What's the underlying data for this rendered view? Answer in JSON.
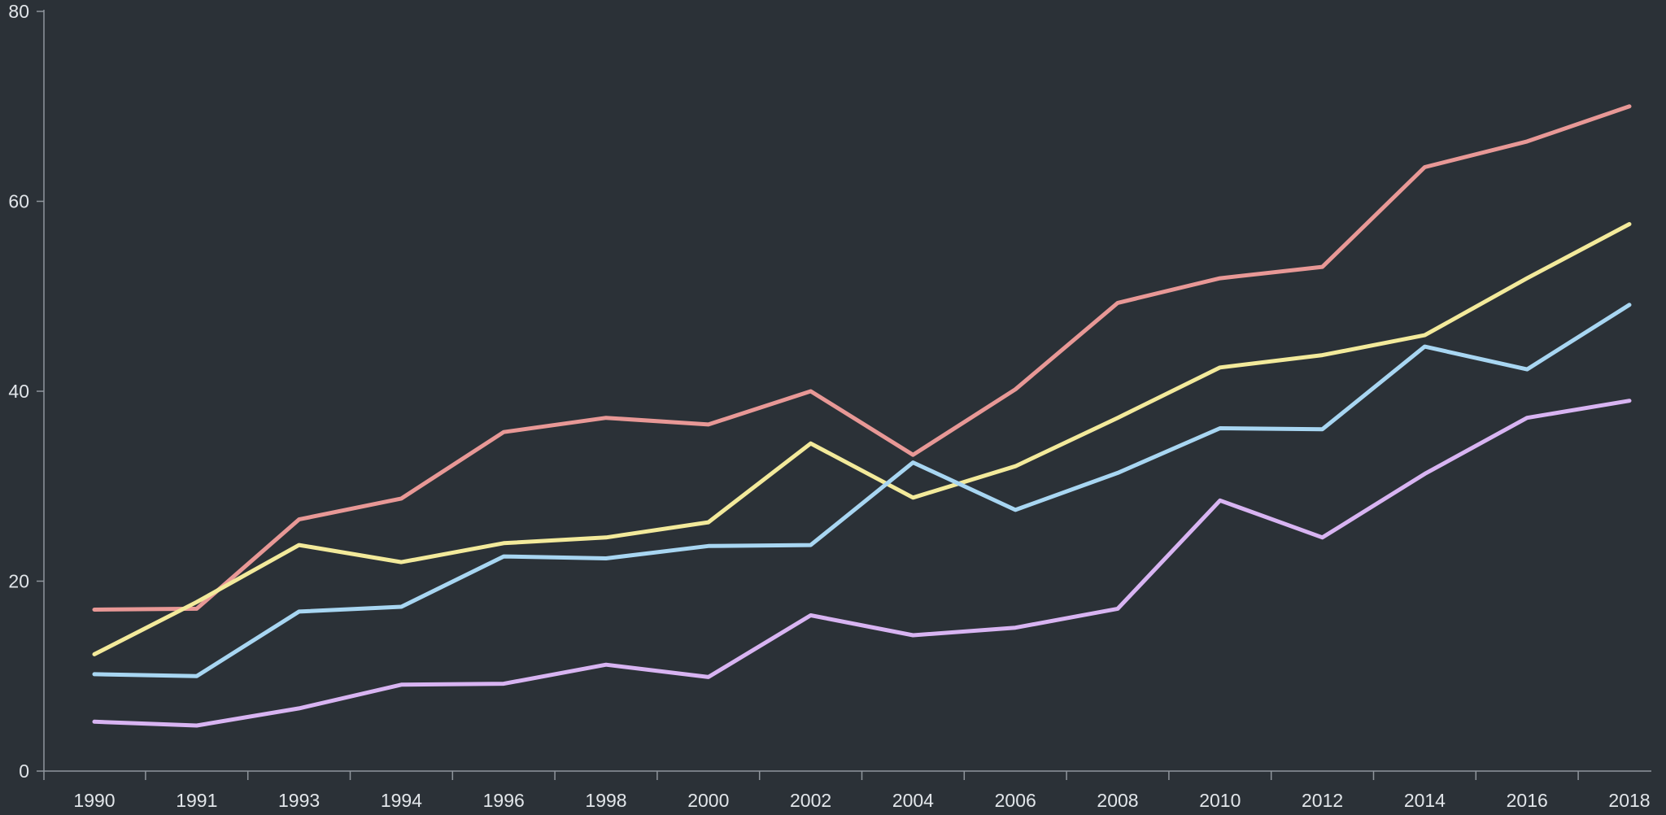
{
  "chart_data": {
    "type": "line",
    "title": "",
    "xlabel": "",
    "ylabel": "",
    "x": [
      "1990",
      "1991",
      "1993",
      "1994",
      "1996",
      "1998",
      "2000",
      "2002",
      "2004",
      "2006",
      "2008",
      "2010",
      "2012",
      "2014",
      "2016",
      "2018"
    ],
    "ylim": [
      0,
      80
    ],
    "yticks": [
      "0",
      "20",
      "40",
      "60",
      "80"
    ],
    "grid": false,
    "legend": "none",
    "series": [
      {
        "color": "#e89896",
        "values": [
          17.0,
          17.1,
          26.5,
          28.7,
          35.7,
          37.2,
          36.5,
          40.0,
          33.3,
          40.2,
          49.3,
          51.9,
          53.1,
          63.6,
          66.3,
          70.0
        ]
      },
      {
        "color": "#f3ea9b",
        "values": [
          12.3,
          17.8,
          23.8,
          22.0,
          24.0,
          24.6,
          26.2,
          34.5,
          28.8,
          32.1,
          37.2,
          42.5,
          43.8,
          45.9,
          51.9,
          57.6
        ]
      },
      {
        "color": "#a8d6f2",
        "values": [
          10.2,
          10.0,
          16.8,
          17.3,
          22.6,
          22.4,
          23.7,
          23.8,
          32.5,
          27.5,
          31.4,
          36.1,
          36.0,
          44.7,
          42.3,
          49.1
        ]
      },
      {
        "color": "#d8b4f2",
        "values": [
          5.2,
          4.8,
          6.6,
          9.1,
          9.2,
          11.2,
          9.9,
          16.4,
          14.3,
          15.1,
          17.1,
          28.5,
          24.6,
          31.3,
          37.2,
          39.0
        ]
      }
    ]
  }
}
